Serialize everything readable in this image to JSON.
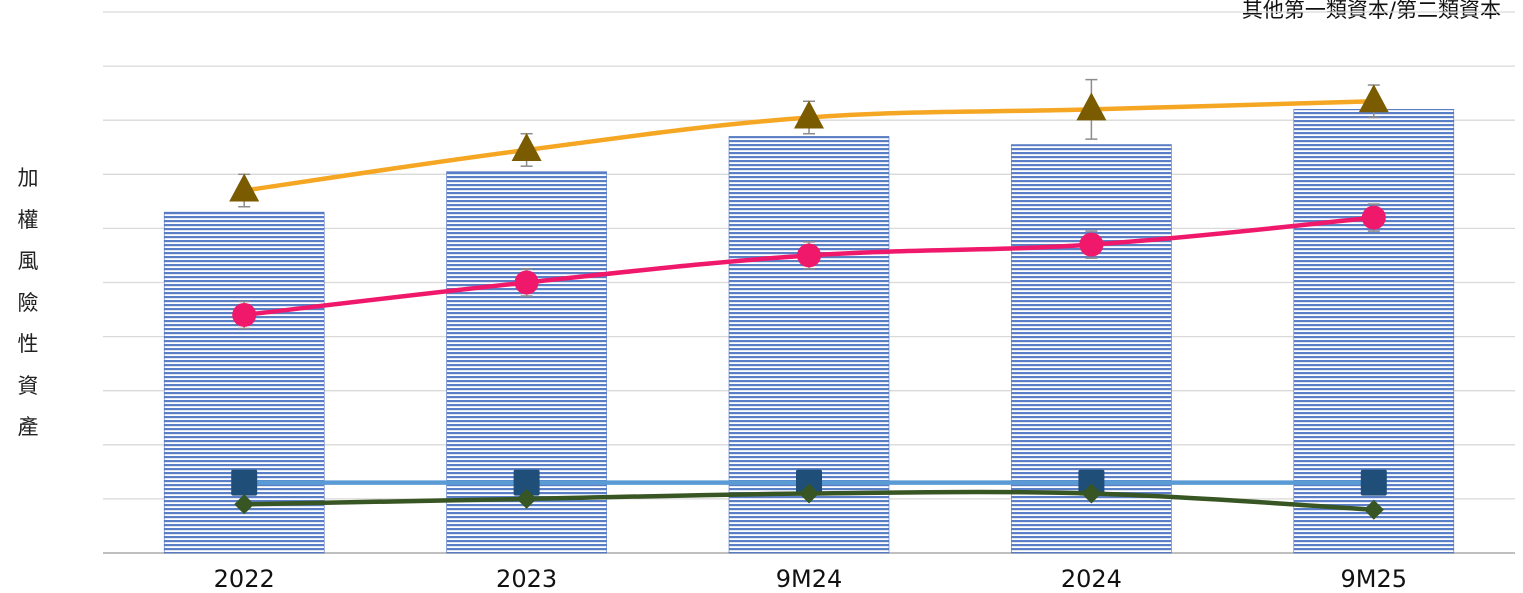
{
  "chart_data": {
    "type": "bar",
    "categories": [
      "2022",
      "2023",
      "9M24",
      "2024",
      "9M25"
    ],
    "ylabel": "加權風險性資產",
    "corner_label": "其他第一類資本/第二類資本",
    "ylim": [
      0,
      100
    ],
    "bar_values": [
      63,
      70.5,
      77,
      75.5,
      82
    ],
    "lines": [
      {
        "marker": "triangle",
        "color": "#F5A623",
        "marker_color": "#7B5B00",
        "values": [
          67,
          74.5,
          80.5,
          82,
          83.5
        ],
        "error": [
          3,
          3,
          3,
          5.5,
          3
        ]
      },
      {
        "marker": "circle",
        "color": "#F0186A",
        "marker_color": "#F0186A",
        "values": [
          44,
          50,
          55,
          57,
          62
        ],
        "error": [
          2.5,
          2.5,
          2.5,
          2.5,
          2.5
        ]
      },
      {
        "marker": "square",
        "color": "#5B9BD5",
        "marker_color": "#1F4E79",
        "values": [
          13,
          13,
          13,
          13,
          13
        ],
        "error": [
          0,
          0,
          0,
          0,
          0
        ]
      },
      {
        "marker": "diamond",
        "color": "#375623",
        "marker_color": "#375623",
        "values": [
          9,
          10,
          11,
          11,
          8
        ],
        "error": [
          0,
          0,
          0,
          0,
          0
        ]
      }
    ],
    "grid": true,
    "legend": "none"
  }
}
